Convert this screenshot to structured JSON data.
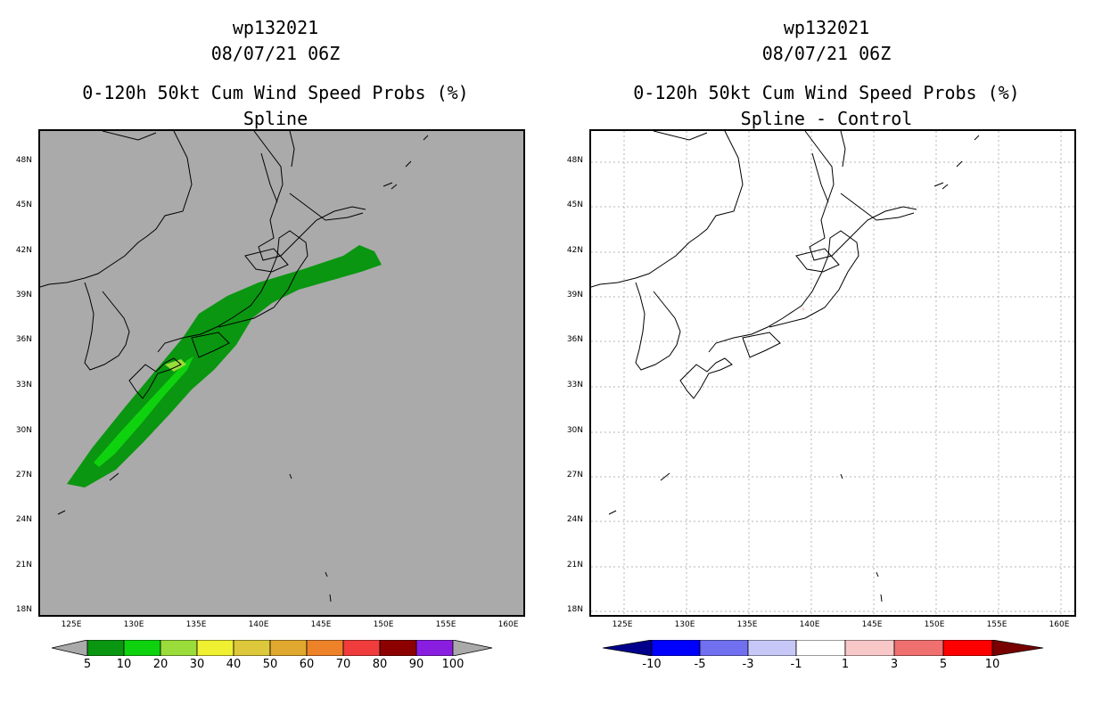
{
  "left_panel": {
    "storm_id": "wp132021",
    "datetime": "08/07/21 06Z",
    "product": "0-120h 50kt Cum Wind Speed Probs (%)",
    "subtitle": "Spline",
    "background_color": "#aaaaaa",
    "probability_fill": [
      {
        "label": "5-10%",
        "color": "#0a9610"
      },
      {
        "label": "10-20%",
        "color": "#0fd20f"
      },
      {
        "label": "20-30%",
        "color": "#9adc3a"
      }
    ],
    "colorbar": {
      "labels": [
        "5",
        "10",
        "20",
        "30",
        "40",
        "50",
        "60",
        "70",
        "80",
        "90",
        "100"
      ],
      "colors": [
        "#0a9610",
        "#0fd20f",
        "#9adc3a",
        "#f0f032",
        "#dcc83a",
        "#e0a82e",
        "#ee8228",
        "#f03c3c",
        "#8c0000",
        "#8a1ee0"
      ],
      "end_color": "#aaaaaa"
    }
  },
  "right_panel": {
    "storm_id": "wp132021",
    "datetime": "08/07/21 06Z",
    "product": "0-120h 50kt Cum Wind Speed Probs (%)",
    "subtitle": "Spline - Control",
    "background_color": "#ffffff",
    "colorbar": {
      "labels": [
        "-10",
        "-5",
        "-3",
        "-1",
        "1",
        "3",
        "5",
        "10"
      ],
      "colors": [
        "#0000ff",
        "#7070f0",
        "#c8c8f8",
        "#ffffff",
        "#f8c8c8",
        "#f07070",
        "#ff0000"
      ],
      "left_end_color": "#00008c",
      "right_end_color": "#780000"
    }
  },
  "axes": {
    "lat_ticks": [
      "48N",
      "45N",
      "42N",
      "39N",
      "36N",
      "33N",
      "30N",
      "27N",
      "24N",
      "21N",
      "18N"
    ],
    "lon_ticks": [
      "125E",
      "130E",
      "135E",
      "140E",
      "145E",
      "150E",
      "155E",
      "160E"
    ]
  }
}
